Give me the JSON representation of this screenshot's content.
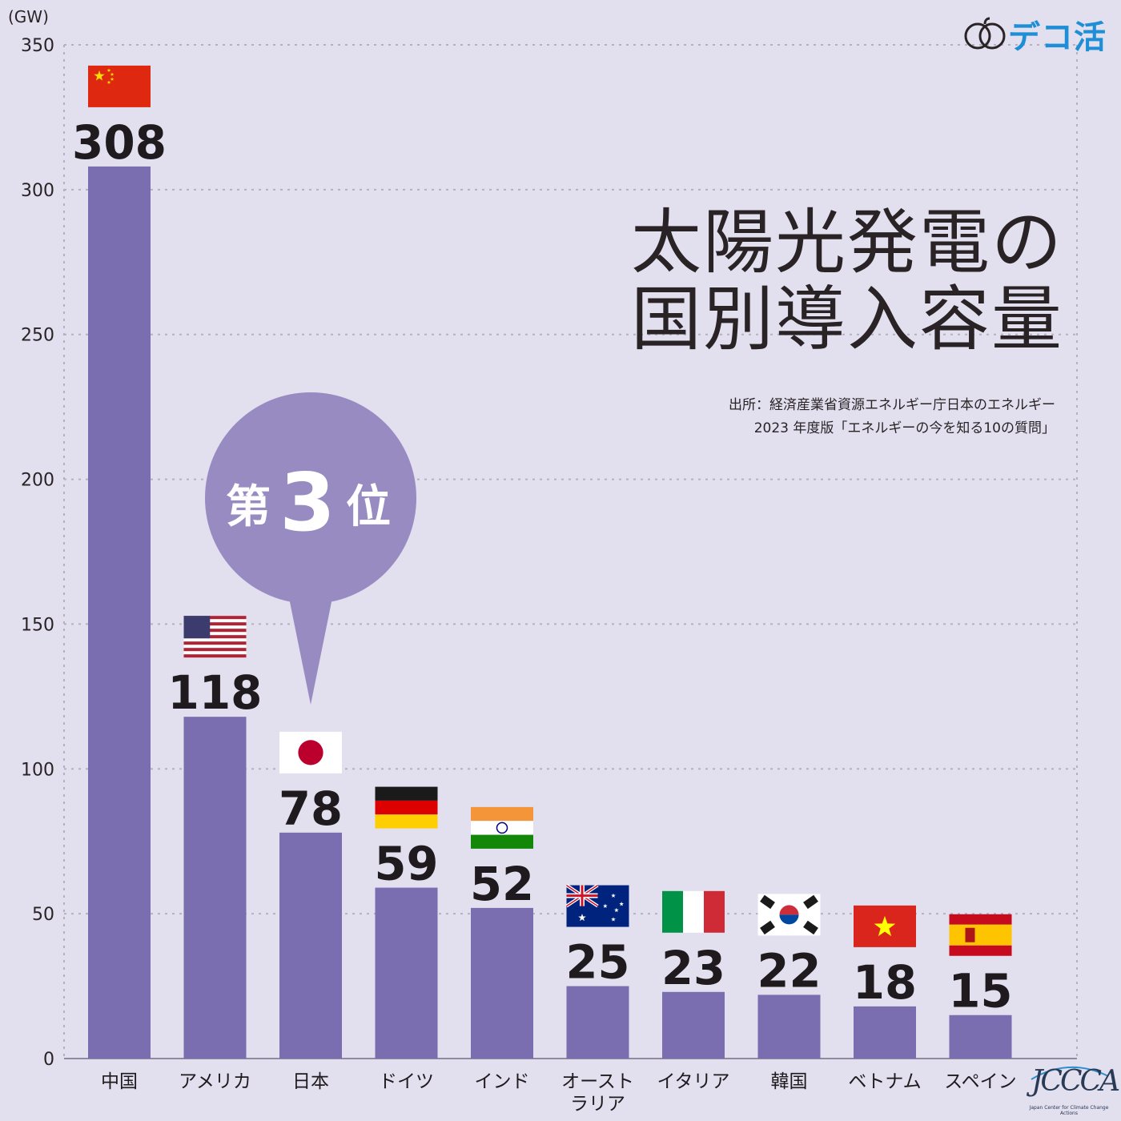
{
  "chart_data": {
    "type": "bar",
    "title": "太陽光発電の国別導入容量",
    "title_lines": [
      "太陽光発電の",
      "国別導入容量"
    ],
    "ylabel": "(GW)",
    "ylim": [
      0,
      350
    ],
    "yticks": [
      0,
      50,
      100,
      150,
      200,
      250,
      300,
      350
    ],
    "grid": true,
    "categories": [
      "中国",
      "アメリカ",
      "日本",
      "ドイツ",
      "インド",
      "オーストラリア",
      "イタリア",
      "韓国",
      "ベトナム",
      "スペイン"
    ],
    "category_lines": [
      [
        "中国"
      ],
      [
        "アメリカ"
      ],
      [
        "日本"
      ],
      [
        "ドイツ"
      ],
      [
        "インド"
      ],
      [
        "オースト",
        "ラリア"
      ],
      [
        "イタリア"
      ],
      [
        "韓国"
      ],
      [
        "ベトナム"
      ],
      [
        "スペイン"
      ]
    ],
    "values": [
      308,
      118,
      78,
      59,
      52,
      25,
      23,
      22,
      18,
      15
    ],
    "flags": [
      "china",
      "usa",
      "japan",
      "germany",
      "india",
      "australia",
      "italy",
      "korea",
      "vietnam",
      "spain"
    ],
    "bar_color": "#7a6db0",
    "highlight": {
      "index": 2,
      "prefix": "第",
      "rank": "3",
      "suffix": "位",
      "color": "#988bc2"
    }
  },
  "source": {
    "line1": "出所：経済産業省資源エネルギー庁日本のエネルギー",
    "line2": "2023 年度版「エネルギーの今を知る10の質問」"
  },
  "logo": {
    "text": "デコ活",
    "color": "#1e8fd6",
    "icon": "double-leaf-icon"
  },
  "footer_logo": {
    "text": "JCCCA",
    "subtitle": "Japan Center for Climate Change Actions"
  }
}
